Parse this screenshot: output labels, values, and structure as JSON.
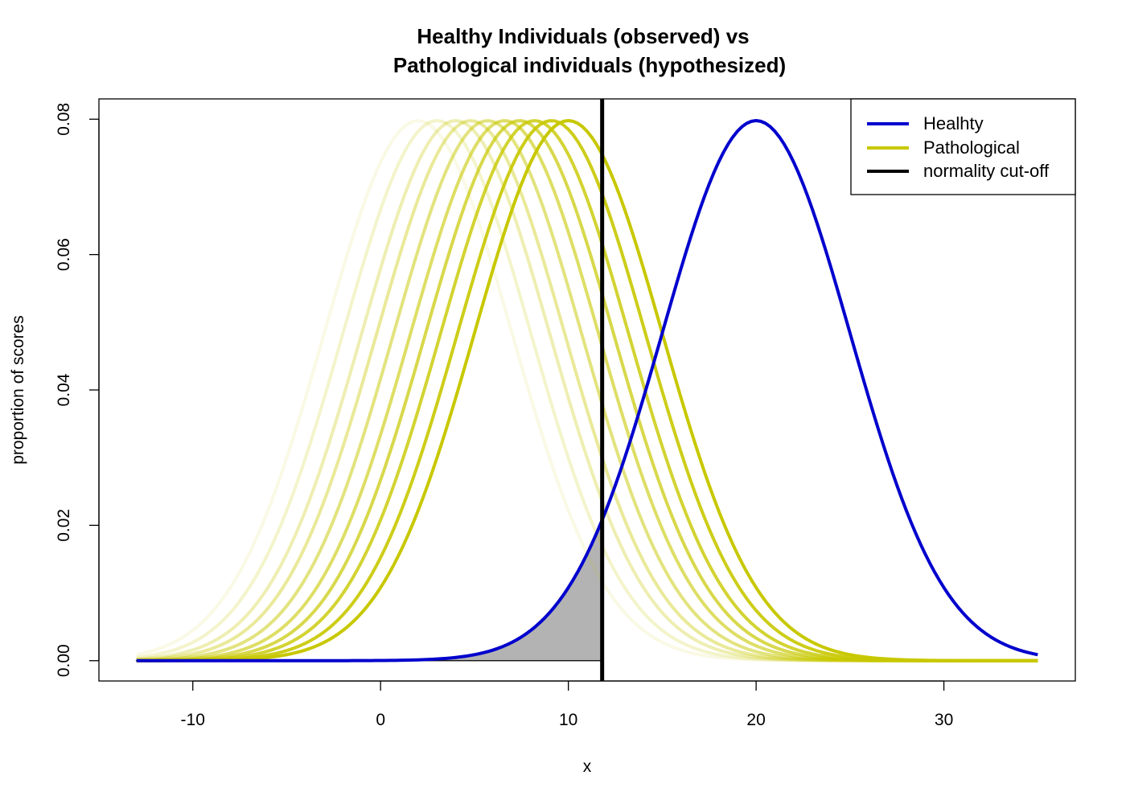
{
  "chart_data": {
    "type": "line",
    "title": [
      "Healthy Individuals (observed) vs",
      "Pathological individuals (hypothesized)"
    ],
    "xlabel": "x",
    "ylabel": "proportion of scores",
    "xlim": [
      -15,
      37
    ],
    "ylim": [
      -0.003,
      0.083
    ],
    "x_domain": [
      -13,
      35
    ],
    "x_ticks": [
      -10,
      0,
      10,
      20,
      30
    ],
    "x_tick_labels": [
      "-10",
      "0",
      "10",
      "20",
      "30"
    ],
    "y_ticks": [
      0.0,
      0.02,
      0.04,
      0.06,
      0.08
    ],
    "y_tick_labels": [
      "0.00",
      "0.02",
      "0.04",
      "0.06",
      "0.08"
    ],
    "grid": false,
    "healthy": {
      "name": "Healhty",
      "mean": 20,
      "sd": 5,
      "color": "#0000CD"
    },
    "pathological": {
      "name": "Pathological",
      "sd": 5,
      "color": "#C8C800",
      "means": [
        2.0,
        3.0,
        4.0,
        4.8,
        5.7,
        6.6,
        7.4,
        8.2,
        9.1,
        10.0
      ],
      "opacities": [
        0.1,
        0.2,
        0.3,
        0.4,
        0.5,
        0.6,
        0.7,
        0.8,
        0.9,
        1.0
      ]
    },
    "cutoff": {
      "name": "normality cut-off",
      "x": 11.8,
      "color": "#000000"
    },
    "shaded_region": {
      "from": -13,
      "to": 11.8,
      "under": "healthy",
      "color": "#B3B3B3"
    },
    "legend": {
      "position": "top-right",
      "entries": [
        {
          "label": "Healhty",
          "color": "#0000CD"
        },
        {
          "label": "Pathological",
          "color": "#C8C800"
        },
        {
          "label": "normality cut-off",
          "color": "#000000"
        }
      ]
    }
  }
}
